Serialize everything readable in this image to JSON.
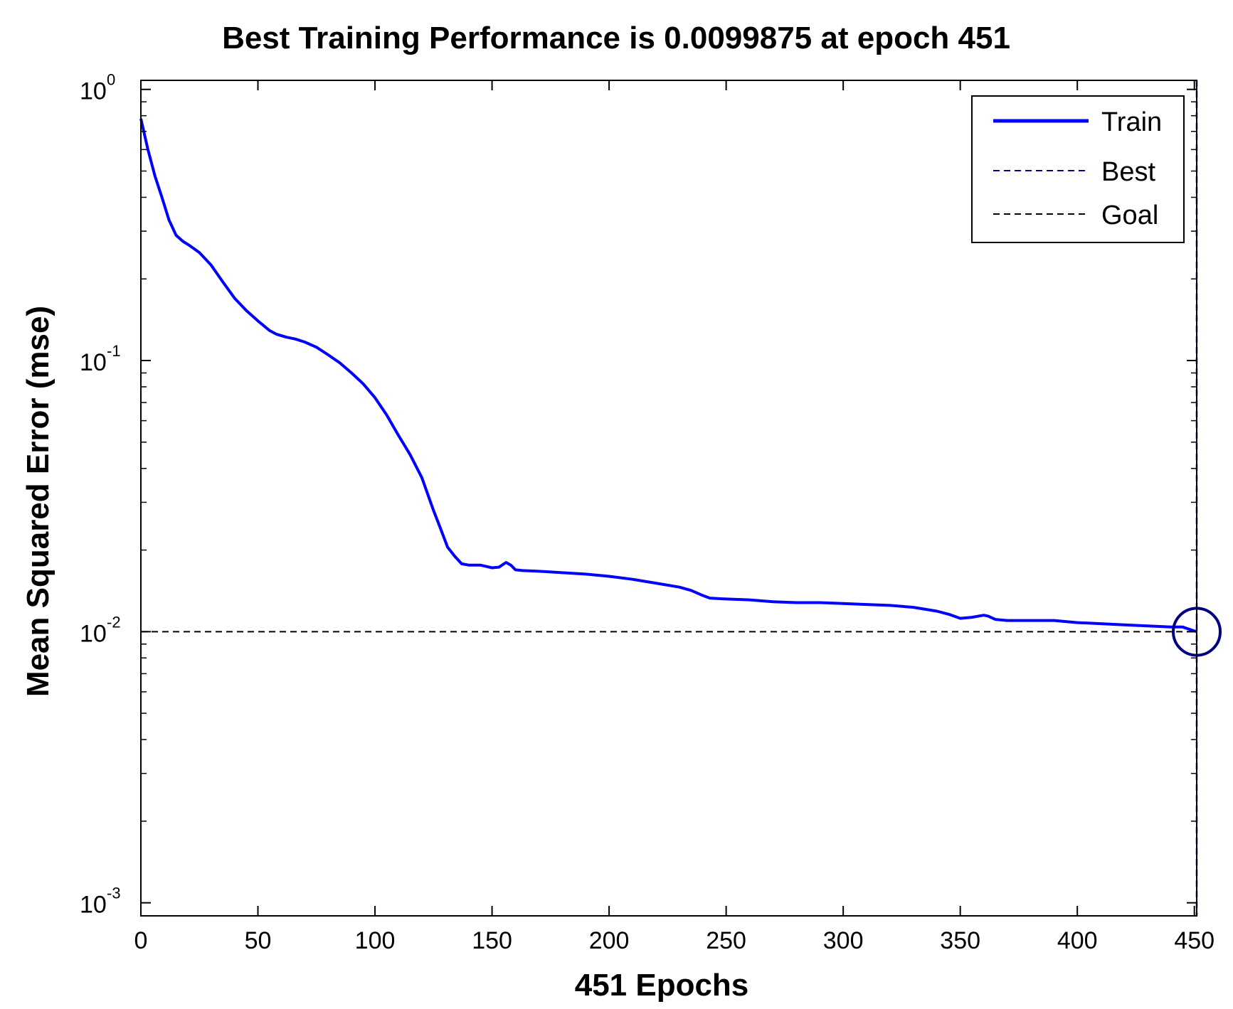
{
  "chart_data": {
    "type": "line",
    "title": "Best Training Performance is 0.0099875 at epoch 451",
    "xlabel": "451 Epochs",
    "ylabel": "Mean Squared Error  (mse)",
    "xlim": [
      0,
      451
    ],
    "ylim": [
      0.000895,
      1.08
    ],
    "yscale": "log",
    "grid": false,
    "x_ticks": [
      0,
      50,
      100,
      150,
      200,
      250,
      300,
      350,
      400,
      450
    ],
    "x_tick_labels": [
      "0",
      "50",
      "100",
      "150",
      "200",
      "250",
      "300",
      "350",
      "400",
      "450"
    ],
    "y_ticks": [
      {
        "value": 1,
        "base": "10",
        "exp": "0"
      },
      {
        "value": 0.1,
        "base": "10",
        "exp": "-1"
      },
      {
        "value": 0.01,
        "base": "10",
        "exp": "-2"
      },
      {
        "value": 0.001,
        "base": "10",
        "exp": "-3"
      }
    ],
    "y_minor_ticks": [
      0.002,
      0.003,
      0.004,
      0.005,
      0.006,
      0.007,
      0.008,
      0.009,
      0.02,
      0.03,
      0.04,
      0.05,
      0.06,
      0.07,
      0.08,
      0.09,
      0.2,
      0.3,
      0.4,
      0.5,
      0.6,
      0.7,
      0.8,
      0.9
    ],
    "legend": {
      "position": "top-right",
      "entries": [
        {
          "label": "Train",
          "style": "solid",
          "color": "#0000ff"
        },
        {
          "label": "Best",
          "style": "dashed",
          "color": "#000080"
        },
        {
          "label": "Goal",
          "style": "dashed",
          "color": "#000000"
        }
      ]
    },
    "series": [
      {
        "name": "Train",
        "color": "#0000ff",
        "x": [
          0,
          3,
          6,
          9,
          12,
          15,
          18,
          21,
          25,
          30,
          35,
          40,
          45,
          50,
          55,
          58,
          62,
          66,
          70,
          75,
          80,
          85,
          90,
          95,
          100,
          105,
          110,
          115,
          120,
          125,
          128,
          131,
          134,
          137,
          140,
          145,
          150,
          153,
          156,
          158,
          160,
          163,
          170,
          180,
          190,
          200,
          210,
          220,
          230,
          235,
          240,
          243,
          250,
          260,
          270,
          280,
          290,
          300,
          310,
          320,
          330,
          340,
          345,
          350,
          355,
          360,
          362,
          365,
          370,
          380,
          390,
          400,
          410,
          420,
          430,
          440,
          445,
          448,
          451
        ],
        "y": [
          0.78,
          0.6,
          0.48,
          0.4,
          0.33,
          0.29,
          0.275,
          0.265,
          0.25,
          0.225,
          0.195,
          0.17,
          0.153,
          0.14,
          0.129,
          0.125,
          0.122,
          0.12,
          0.117,
          0.112,
          0.105,
          0.098,
          0.09,
          0.082,
          0.073,
          0.063,
          0.053,
          0.045,
          0.037,
          0.028,
          0.024,
          0.0205,
          0.019,
          0.0178,
          0.0176,
          0.0176,
          0.0172,
          0.0173,
          0.018,
          0.0176,
          0.0169,
          0.0168,
          0.0167,
          0.0165,
          0.0163,
          0.016,
          0.0156,
          0.0151,
          0.0146,
          0.0142,
          0.0136,
          0.0133,
          0.0132,
          0.0131,
          0.0129,
          0.0128,
          0.0128,
          0.0127,
          0.0126,
          0.0125,
          0.0123,
          0.0119,
          0.0116,
          0.0112,
          0.0113,
          0.0115,
          0.0114,
          0.0111,
          0.011,
          0.011,
          0.011,
          0.0108,
          0.0107,
          0.0106,
          0.0105,
          0.0104,
          0.0104,
          0.0102,
          0.0099875
        ]
      }
    ],
    "best": {
      "epoch": 451,
      "value": 0.0099875,
      "color": "#000080"
    },
    "goal": {
      "value": 0.01,
      "color": "#000000"
    }
  }
}
